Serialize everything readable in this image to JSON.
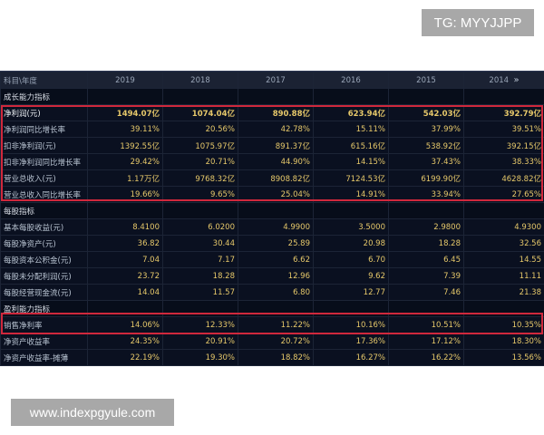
{
  "watermarks": {
    "top": "TG: MYYJJPP",
    "bottom": "www.indexpgyule.com"
  },
  "table": {
    "header": {
      "label": "科目\\年度",
      "years": [
        "2019",
        "2018",
        "2017",
        "2016",
        "2015",
        "2014"
      ],
      "chevron": "»"
    },
    "sections": [
      {
        "title": "成长能力指标",
        "rows": [
          {
            "label": "净利润(元)",
            "values": [
              "1494.07亿",
              "1074.04亿",
              "890.88亿",
              "623.94亿",
              "542.03亿",
              "392.79亿"
            ],
            "bold": true
          },
          {
            "label": "净利润同比增长率",
            "values": [
              "39.11%",
              "20.56%",
              "42.78%",
              "15.11%",
              "37.99%",
              "39.51%"
            ]
          },
          {
            "label": "扣非净利润(元)",
            "values": [
              "1392.55亿",
              "1075.97亿",
              "891.37亿",
              "615.16亿",
              "538.92亿",
              "392.15亿"
            ]
          },
          {
            "label": "扣非净利润同比增长率",
            "values": [
              "29.42%",
              "20.71%",
              "44.90%",
              "14.15%",
              "37.43%",
              "38.33%"
            ]
          },
          {
            "label": "营业总收入(元)",
            "values": [
              "1.17万亿",
              "9768.32亿",
              "8908.82亿",
              "7124.53亿",
              "6199.90亿",
              "4628.82亿"
            ]
          },
          {
            "label": "营业总收入同比增长率",
            "values": [
              "19.66%",
              "9.65%",
              "25.04%",
              "14.91%",
              "33.94%",
              "27.65%"
            ]
          }
        ]
      },
      {
        "title": "每股指标",
        "rows": [
          {
            "label": "基本每股收益(元)",
            "values": [
              "8.4100",
              "6.0200",
              "4.9900",
              "3.5000",
              "2.9800",
              "4.9300"
            ]
          },
          {
            "label": "每股净资产(元)",
            "values": [
              "36.82",
              "30.44",
              "25.89",
              "20.98",
              "18.28",
              "32.56"
            ]
          },
          {
            "label": "每股资本公积金(元)",
            "values": [
              "7.04",
              "7.17",
              "6.62",
              "6.70",
              "6.45",
              "14.55"
            ]
          },
          {
            "label": "每股未分配利润(元)",
            "values": [
              "23.72",
              "18.28",
              "12.96",
              "9.62",
              "7.39",
              "11.11"
            ]
          },
          {
            "label": "每股经营现金流(元)",
            "values": [
              "14.04",
              "11.57",
              "6.80",
              "12.77",
              "7.46",
              "21.38"
            ]
          }
        ]
      },
      {
        "title": "盈利能力指标",
        "rows": [
          {
            "label": "销售净利率",
            "values": [
              "14.06%",
              "12.33%",
              "11.22%",
              "10.16%",
              "10.51%",
              "10.35%"
            ]
          },
          {
            "label": "净资产收益率",
            "values": [
              "24.35%",
              "20.91%",
              "20.72%",
              "17.36%",
              "17.12%",
              "18.30%"
            ]
          },
          {
            "label": "净资产收益率-摊薄",
            "values": [
              "22.19%",
              "19.30%",
              "18.82%",
              "16.27%",
              "16.22%",
              "13.56%"
            ]
          }
        ]
      }
    ]
  },
  "colors": {
    "highlight_box": "#d0283c",
    "value_text": "#e6c86a",
    "background": "#070d1a"
  }
}
